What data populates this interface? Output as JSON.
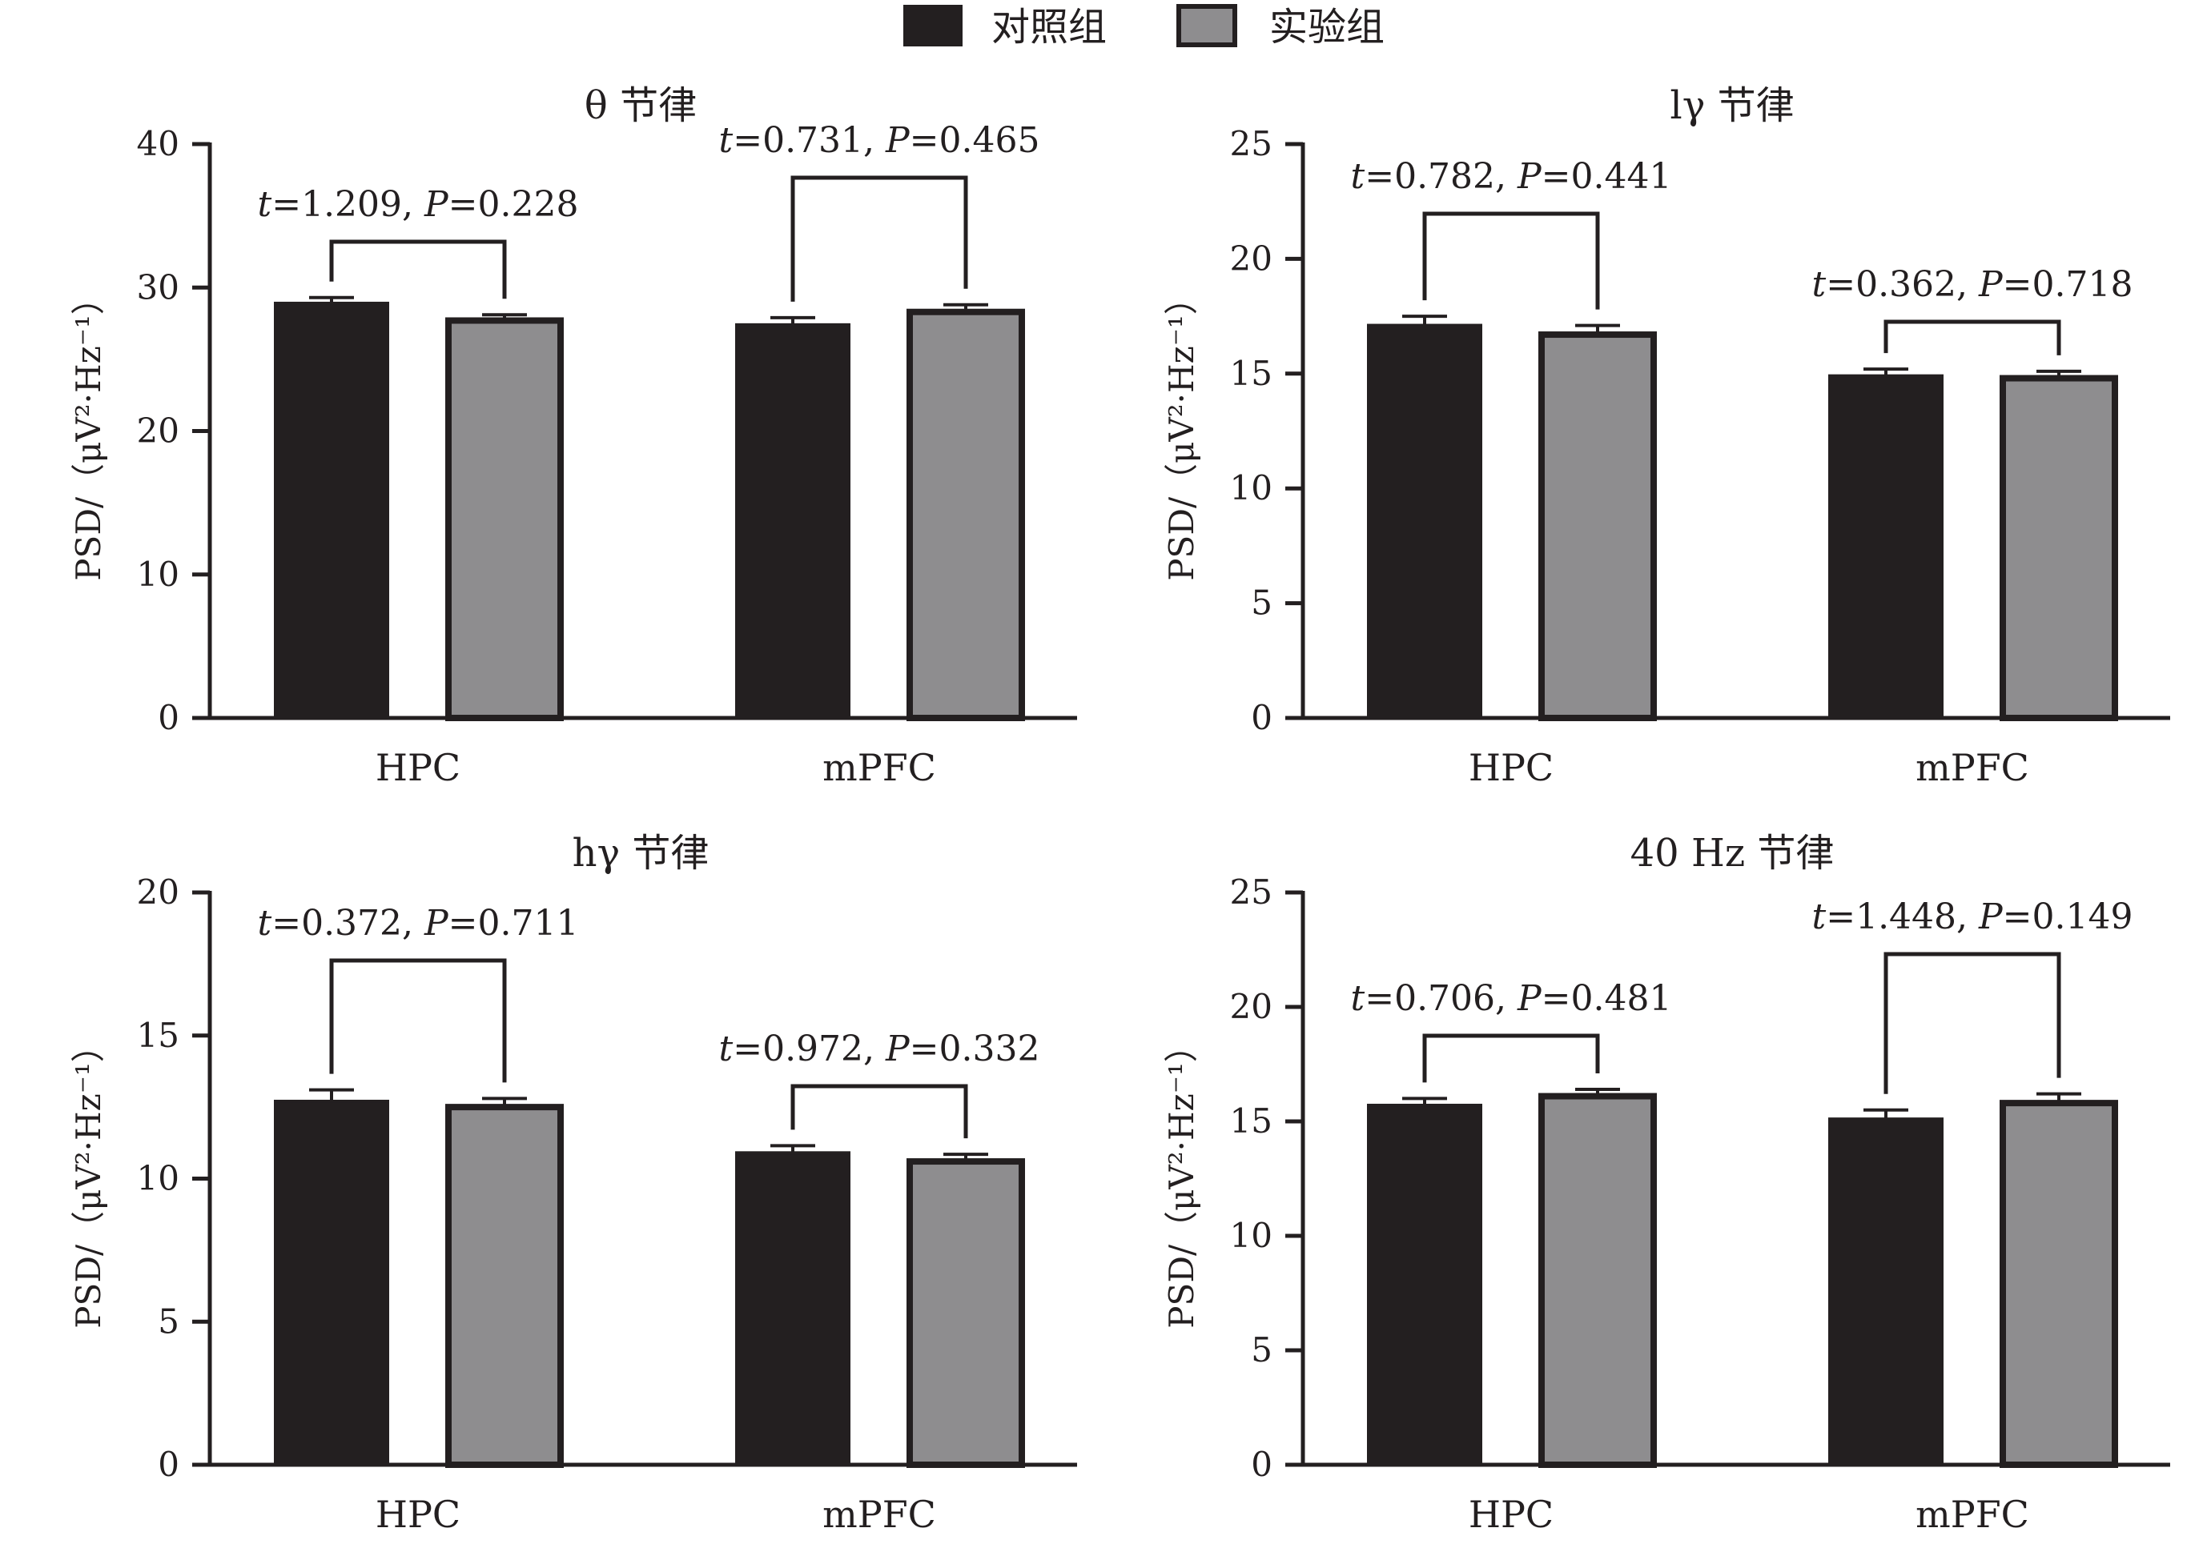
{
  "legend": [
    {
      "label": "对照组",
      "fill": "#231f20",
      "stroke": "#231f20"
    },
    {
      "label": "实验组",
      "fill": "#8e8d8f",
      "stroke": "#231f20"
    }
  ],
  "chart_data": [
    {
      "type": "bar",
      "title": "θ 节律",
      "ylabel": "PSD/（μV²·Hz⁻¹）",
      "categories": [
        "HPC",
        "mPFC"
      ],
      "ylim": [
        0,
        40
      ],
      "yticks": [
        0,
        10,
        20,
        30,
        40
      ],
      "series": [
        {
          "name": "对照组",
          "values": [
            28.9,
            27.4
          ],
          "errors": [
            0.4,
            0.5
          ]
        },
        {
          "name": "实验组",
          "values": [
            27.7,
            28.3
          ],
          "errors": [
            0.4,
            0.5
          ]
        }
      ],
      "annotations": [
        {
          "t": "1.209",
          "p": "0.228"
        },
        {
          "t": "0.731",
          "p": "0.465"
        }
      ]
    },
    {
      "type": "bar",
      "title": "lγ 节律",
      "ylabel": "PSD/（μV²·Hz⁻¹）",
      "categories": [
        "HPC",
        "mPFC"
      ],
      "ylim": [
        0,
        25
      ],
      "yticks": [
        0,
        5,
        10,
        15,
        20,
        25
      ],
      "series": [
        {
          "name": "对照组",
          "values": [
            17.1,
            14.9
          ],
          "errors": [
            0.4,
            0.3
          ]
        },
        {
          "name": "实验组",
          "values": [
            16.7,
            14.8
          ],
          "errors": [
            0.4,
            0.3
          ]
        }
      ],
      "annotations": [
        {
          "t": "0.782",
          "p": "0.441"
        },
        {
          "t": "0.362",
          "p": "0.718"
        }
      ]
    },
    {
      "type": "bar",
      "title": "hγ 节律",
      "ylabel": "PSD/（μV²·Hz⁻¹）",
      "categories": [
        "HPC",
        "mPFC"
      ],
      "ylim": [
        0,
        20
      ],
      "yticks": [
        0,
        5,
        10,
        15,
        20
      ],
      "series": [
        {
          "name": "对照组",
          "values": [
            12.7,
            10.9
          ],
          "errors": [
            0.4,
            0.25
          ]
        },
        {
          "name": "实验组",
          "values": [
            12.5,
            10.6
          ],
          "errors": [
            0.3,
            0.25
          ]
        }
      ],
      "annotations": [
        {
          "t": "0.372",
          "p": "0.711"
        },
        {
          "t": "0.972",
          "p": "0.332"
        }
      ]
    },
    {
      "type": "bar",
      "title": "40 Hz 节律",
      "ylabel": "PSD/（μV²·Hz⁻¹）",
      "categories": [
        "HPC",
        "mPFC"
      ],
      "ylim": [
        0,
        25
      ],
      "yticks": [
        0,
        5,
        10,
        15,
        20,
        25
      ],
      "series": [
        {
          "name": "对照组",
          "values": [
            15.7,
            15.1
          ],
          "errors": [
            0.3,
            0.4
          ]
        },
        {
          "name": "实验组",
          "values": [
            16.1,
            15.8
          ],
          "errors": [
            0.3,
            0.4
          ]
        }
      ],
      "annotations": [
        {
          "t": "0.706",
          "p": "0.481"
        },
        {
          "t": "1.448",
          "p": "0.149"
        }
      ]
    }
  ]
}
